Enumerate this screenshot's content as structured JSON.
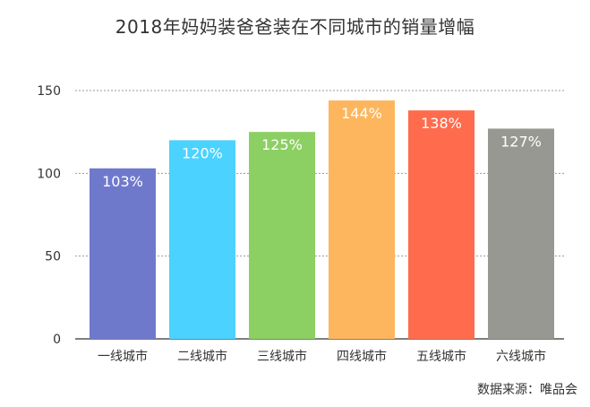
{
  "chart_data": {
    "type": "bar",
    "title": "2018年妈妈装爸爸装在不同城市的销量增幅",
    "categories": [
      "一线城市",
      "二线城市",
      "三线城市",
      "四线城市",
      "五线城市",
      "六线城市"
    ],
    "values": [
      103,
      120,
      125,
      144,
      138,
      127
    ],
    "data_labels": [
      "103%",
      "120%",
      "125%",
      "144%",
      "138%",
      "127%"
    ],
    "colors": [
      "#6f79cc",
      "#4cd2fe",
      "#8ccf63",
      "#fdb65d",
      "#fe6c4d",
      "#979891"
    ],
    "ylim": [
      0,
      150
    ],
    "yticks": [
      0,
      50,
      100,
      150
    ],
    "grid": true,
    "xlabel": "",
    "ylabel": ""
  },
  "source": "数据来源：唯品会"
}
